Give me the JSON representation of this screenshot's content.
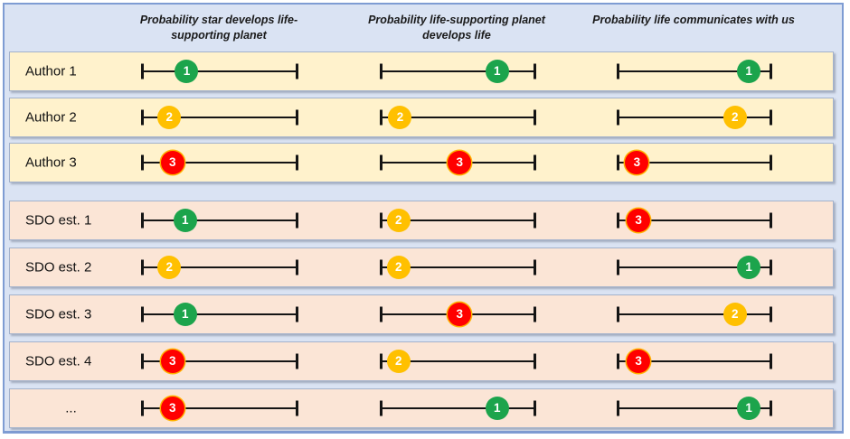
{
  "figure": {
    "background": "#DAE3F3",
    "border_color": "#7E9CD3"
  },
  "column_headers": [
    "Probability star develops life-supporting planet",
    "Probability life-supporting planet develops life",
    "Probability life communicates with us"
  ],
  "rating_colors": {
    "1": "#1CA44C",
    "2": "#FFC000",
    "3": "#FF0000"
  },
  "rating_ring_color": "#FFB300",
  "row_groups": [
    {
      "name": "authors",
      "row_background": "#FFF2CC"
    },
    {
      "name": "sdo-estimates",
      "row_background": "#FBE5D6"
    }
  ],
  "rows": [
    {
      "label": "Author 1",
      "group": "authors",
      "estimates": [
        {
          "rating": 1,
          "position_pct": 29
        },
        {
          "rating": 1,
          "position_pct": 75
        },
        {
          "rating": 1,
          "position_pct": 85
        }
      ]
    },
    {
      "label": "Author 2",
      "group": "authors",
      "estimates": [
        {
          "rating": 2,
          "position_pct": 18
        },
        {
          "rating": 2,
          "position_pct": 13
        },
        {
          "rating": 2,
          "position_pct": 76
        }
      ]
    },
    {
      "label": "Author 3",
      "group": "authors",
      "estimates": [
        {
          "rating": 3,
          "position_pct": 20
        },
        {
          "rating": 3,
          "position_pct": 51
        },
        {
          "rating": 3,
          "position_pct": 13
        }
      ]
    },
    {
      "label": "SDO est. 1",
      "group": "sdo-estimates",
      "estimates": [
        {
          "rating": 1,
          "position_pct": 28
        },
        {
          "rating": 2,
          "position_pct": 12
        },
        {
          "rating": 3,
          "position_pct": 14
        }
      ]
    },
    {
      "label": "SDO est. 2",
      "group": "sdo-estimates",
      "estimates": [
        {
          "rating": 2,
          "position_pct": 18
        },
        {
          "rating": 2,
          "position_pct": 12
        },
        {
          "rating": 1,
          "position_pct": 85
        }
      ]
    },
    {
      "label": "SDO est. 3",
      "group": "sdo-estimates",
      "estimates": [
        {
          "rating": 1,
          "position_pct": 28
        },
        {
          "rating": 3,
          "position_pct": 51
        },
        {
          "rating": 2,
          "position_pct": 76
        }
      ]
    },
    {
      "label": "SDO est. 4",
      "group": "sdo-estimates",
      "estimates": [
        {
          "rating": 3,
          "position_pct": 20
        },
        {
          "rating": 2,
          "position_pct": 12
        },
        {
          "rating": 3,
          "position_pct": 14
        }
      ]
    },
    {
      "label": "...",
      "group": "sdo-estimates",
      "label_align": "center",
      "estimates": [
        {
          "rating": 3,
          "position_pct": 20
        },
        {
          "rating": 1,
          "position_pct": 75
        },
        {
          "rating": 1,
          "position_pct": 85
        }
      ]
    }
  ]
}
